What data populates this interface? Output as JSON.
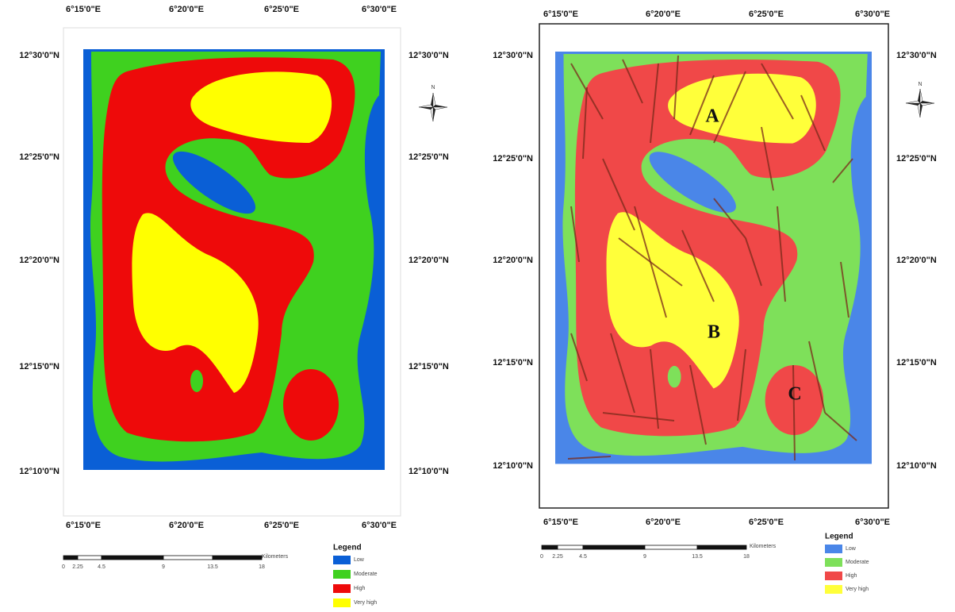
{
  "maps": [
    {
      "top_labels": [
        "6°15'0\"E",
        "6°20'0\"E",
        "6°25'0\"E",
        "6°30'0\"E"
      ],
      "bottom_labels": [
        "6°15'0\"E",
        "6°20'0\"E",
        "6°25'0\"E",
        "6°30'0\"E"
      ],
      "left_labels": [
        "12°30'0\"N",
        "12°25'0\"N",
        "12°20'0\"N",
        "12°15'0\"N",
        "12°10'0\"N"
      ],
      "right_labels": [
        "12°30'0\"N",
        "12°25'0\"N",
        "12°20'0\"N",
        "12°15'0\"N",
        "12°10'0\"N"
      ],
      "north": "N",
      "legend": {
        "title": "Legend",
        "items": [
          "Low",
          "Moderate",
          "High",
          "Very high"
        ]
      },
      "scale": {
        "labels": [
          "0",
          "2.25",
          "4.5",
          "9",
          "13.5",
          "18"
        ],
        "unit": "Kilometers"
      }
    },
    {
      "top_labels": [
        "6°15'0\"E",
        "6°20'0\"E",
        "6°25'0\"E",
        "6°30'0\"E"
      ],
      "bottom_labels": [
        "6°15'0\"E",
        "6°20'0\"E",
        "6°25'0\"E",
        "6°30'0\"E"
      ],
      "left_labels": [
        "12°30'0\"N",
        "12°25'0\"N",
        "12°20'0\"N",
        "12°15'0\"N",
        "12°10'0\"N"
      ],
      "right_labels": [
        "12°30'0\"N",
        "12°25'0\"N",
        "12°20'0\"N",
        "12°15'0\"N",
        "12°10'0\"N"
      ],
      "north": "N",
      "legend": {
        "title": "Legend",
        "items": [
          "Low",
          "Moderate",
          "High",
          "Very high"
        ]
      },
      "scale": {
        "labels": [
          "0",
          "2.25",
          "4.5",
          "9",
          "13.5",
          "18"
        ],
        "unit": "Kilometers"
      },
      "zone_labels": [
        "A",
        "B",
        "C"
      ]
    }
  ]
}
